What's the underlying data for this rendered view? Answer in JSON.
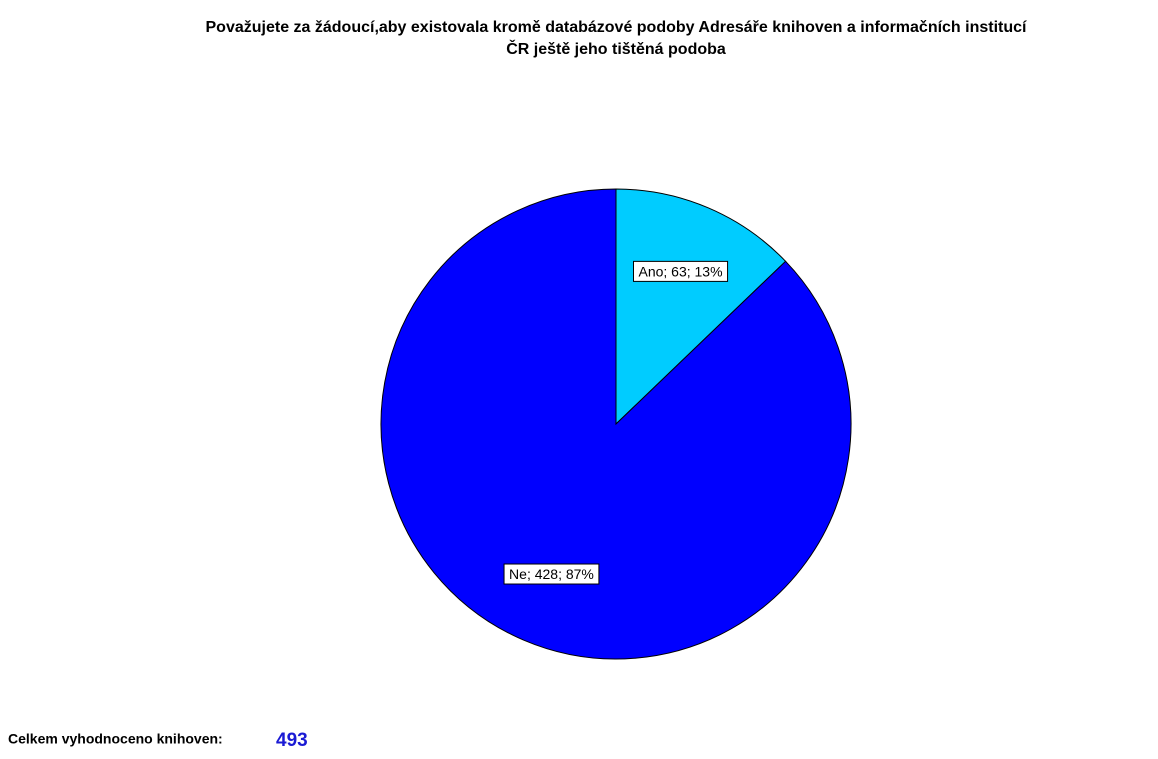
{
  "chart_data": {
    "type": "pie",
    "title": [
      "Považujete za žádoucí,aby existovala kromě databázové podoby Adresáře knihoven a informačních institucí",
      "ČR ještě jeho tištěná podoba"
    ],
    "categories": [
      "Ano",
      "Ne"
    ],
    "values": [
      63,
      428
    ],
    "value_labels": [
      "Ano; 63; 13%",
      "Ne; 428; 87%"
    ],
    "colors": [
      "#00ccff",
      "#0000ff"
    ],
    "footer": {
      "label": "Celkem vyhodnoceno  knihoven:",
      "value": 493
    }
  }
}
